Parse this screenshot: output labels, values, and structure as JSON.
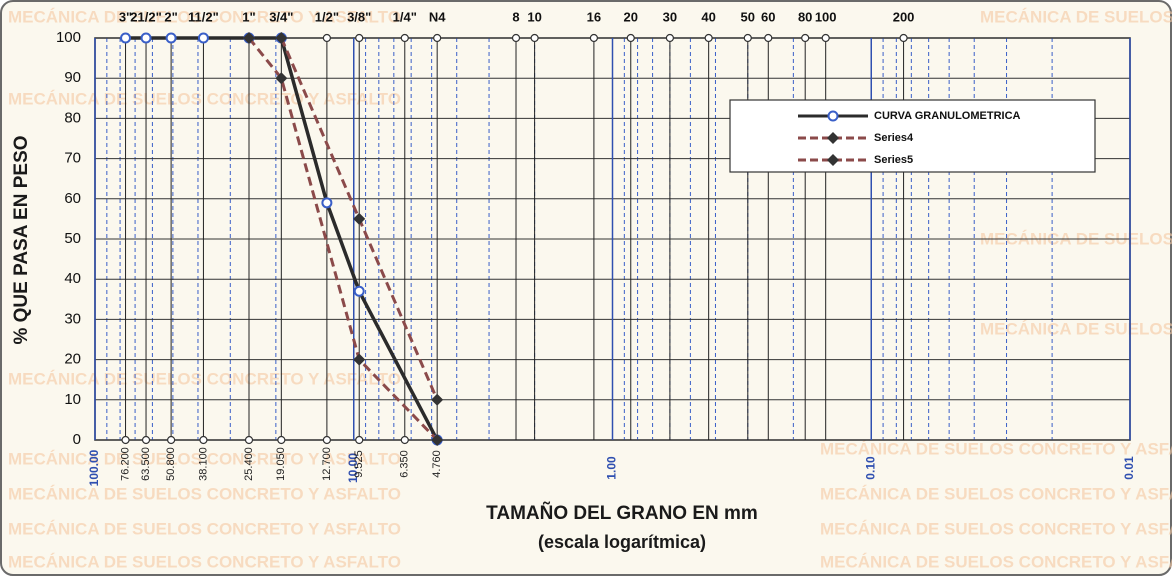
{
  "chart_data": {
    "type": "line",
    "watermark": "MECÁNICA DE SUELOS CONCRETO Y ASFALTO",
    "ylabel": "% QUE PASA EN PESO",
    "xlabel": "TAMAÑO DEL GRANO EN mm",
    "xlabel_note": "(escala logarítmica)",
    "log_x": true,
    "xlim": [
      100,
      0.01
    ],
    "xticks": [
      {
        "value": 100,
        "label": "100.00"
      },
      {
        "value": 10,
        "label": "10.00"
      },
      {
        "value": 1,
        "label": "1.00"
      },
      {
        "value": 0.1,
        "label": "0.10"
      },
      {
        "value": 0.01,
        "label": "0.01"
      }
    ],
    "ylim": [
      0,
      100
    ],
    "yticks": [
      0,
      10,
      20,
      30,
      40,
      50,
      60,
      70,
      80,
      90,
      100
    ],
    "grid": true,
    "legend": "upper right",
    "sieves": [
      {
        "name": "3\"",
        "mm": 76.2,
        "mm_label": "76.200"
      },
      {
        "name": "21/2\"",
        "mm": 63.5,
        "mm_label": "63.500"
      },
      {
        "name": "2\"",
        "mm": 50.8,
        "mm_label": "50.800"
      },
      {
        "name": "11/2\"",
        "mm": 38.1,
        "mm_label": "38.100"
      },
      {
        "name": "1\"",
        "mm": 25.4,
        "mm_label": "25.400"
      },
      {
        "name": "3/4\"",
        "mm": 19.05,
        "mm_label": "19.050"
      },
      {
        "name": "1/2\"",
        "mm": 12.7,
        "mm_label": "12.700"
      },
      {
        "name": "3/8\"",
        "mm": 9.525,
        "mm_label": "9.525"
      },
      {
        "name": "1/4\"",
        "mm": 6.35,
        "mm_label": "6.350"
      },
      {
        "name": "N4",
        "mm": 4.76,
        "mm_label": "4.760"
      },
      {
        "name": "8",
        "mm": 2.36
      },
      {
        "name": "10",
        "mm": 2.0
      },
      {
        "name": "16",
        "mm": 1.18
      },
      {
        "name": "20",
        "mm": 0.85
      },
      {
        "name": "30",
        "mm": 0.6
      },
      {
        "name": "40",
        "mm": 0.425
      },
      {
        "name": "50",
        "mm": 0.3
      },
      {
        "name": "60",
        "mm": 0.25
      },
      {
        "name": "80",
        "mm": 0.18
      },
      {
        "name": "100",
        "mm": 0.15
      },
      {
        "name": "200",
        "mm": 0.075
      }
    ],
    "series": [
      {
        "name": "CURVA GRANULOMETRICA",
        "color": "#2b2b2b",
        "marker": "circle",
        "dash": false,
        "x": [
          76.2,
          63.5,
          50.8,
          38.1,
          25.4,
          19.05,
          12.7,
          9.525,
          4.76
        ],
        "values": [
          100,
          100,
          100,
          100,
          100,
          100,
          59,
          37,
          0
        ]
      },
      {
        "name": "Series4",
        "color": "#8b4a4a",
        "marker": "diamond",
        "dash": true,
        "x": [
          25.4,
          19.05,
          9.525,
          4.76
        ],
        "values": [
          100,
          90,
          20,
          0
        ]
      },
      {
        "name": "Series5",
        "color": "#8b4a4a",
        "marker": "diamond",
        "dash": true,
        "x": [
          19.05,
          9.525,
          4.76
        ],
        "values": [
          100,
          55,
          10
        ]
      }
    ]
  }
}
